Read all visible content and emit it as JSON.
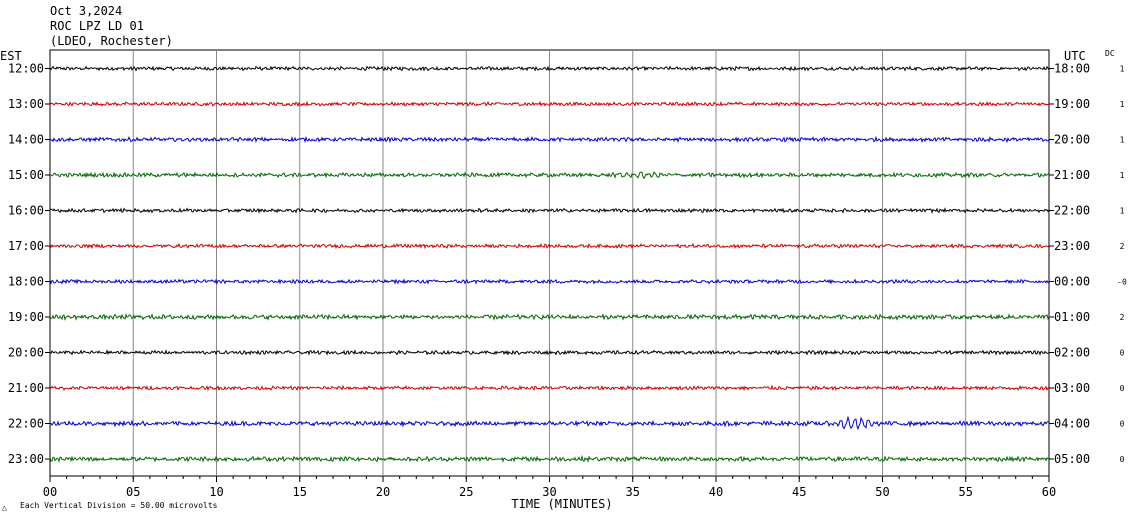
{
  "header": {
    "date": "Oct 3,2024",
    "station": "ROC LPZ LD 01",
    "network": "(LDEO, Rochester)"
  },
  "labels": {
    "left_zone": "EST",
    "right_zone": "UTC",
    "dc": "DC",
    "footnote": "Each Vertical Division =   50.00 microvolts"
  },
  "colors": {
    "trace_cycle": [
      "#000000",
      "#cc0000",
      "#0000cc",
      "#006600"
    ],
    "grid": "#000000"
  },
  "chart_data": {
    "type": "line",
    "title": "",
    "xlabel": "TIME (MINUTES)",
    "ylabel": "",
    "xlim": [
      0,
      60
    ],
    "x_ticks": [
      "00",
      "05",
      "10",
      "15",
      "20",
      "25",
      "30",
      "35",
      "40",
      "45",
      "50",
      "55",
      "60"
    ],
    "grid": true,
    "rows": [
      {
        "est": "12:00",
        "utc": "18:00",
        "dc": "1",
        "noise": 0.8,
        "events": []
      },
      {
        "est": "13:00",
        "utc": "19:00",
        "dc": "1",
        "noise": 0.8,
        "events": []
      },
      {
        "est": "14:00",
        "utc": "20:00",
        "dc": "1",
        "noise": 0.9,
        "events": []
      },
      {
        "est": "15:00",
        "utc": "21:00",
        "dc": "1",
        "noise": 0.9,
        "events": [
          {
            "start": 33.3,
            "end": 41,
            "amp": 3.5
          }
        ]
      },
      {
        "est": "16:00",
        "utc": "22:00",
        "dc": "1",
        "noise": 0.8,
        "events": []
      },
      {
        "est": "17:00",
        "utc": "23:00",
        "dc": "2",
        "noise": 0.8,
        "events": []
      },
      {
        "est": "18:00",
        "utc": "00:00",
        "dc": "-0",
        "noise": 0.8,
        "events": []
      },
      {
        "est": "19:00",
        "utc": "01:00",
        "dc": "2",
        "noise": 1.0,
        "events": []
      },
      {
        "est": "20:00",
        "utc": "02:00",
        "dc": "0",
        "noise": 0.8,
        "events": []
      },
      {
        "est": "21:00",
        "utc": "03:00",
        "dc": "0",
        "noise": 0.8,
        "events": []
      },
      {
        "est": "22:00",
        "utc": "04:00",
        "dc": "0",
        "noise": 1.0,
        "events": [
          {
            "start": 47,
            "end": 52,
            "amp": 9
          }
        ]
      },
      {
        "est": "23:00",
        "utc": "05:00",
        "dc": "0",
        "noise": 1.0,
        "events": []
      }
    ]
  }
}
